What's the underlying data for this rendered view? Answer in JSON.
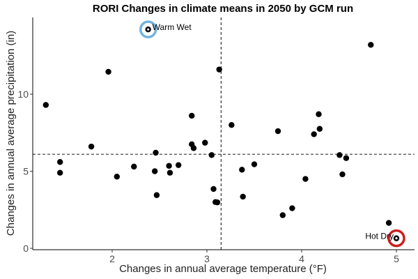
{
  "chart_data": {
    "type": "scatter",
    "title": "RORI Changes in climate means in 2050 by GCM run",
    "xlabel": "Changes in annual average temperature (°F)",
    "ylabel": "Changes in annual average precipitation (in)",
    "xlim": [
      1.2,
      5.2
    ],
    "ylim": [
      0,
      15
    ],
    "x_ticks": [
      2,
      3,
      4,
      5
    ],
    "y_ticks": [
      0,
      5,
      10
    ],
    "x_tick_labels": [
      "2",
      "3",
      "4",
      "5"
    ],
    "y_tick_labels": [
      "0",
      "5",
      "10"
    ],
    "grid": false,
    "reference_lines": {
      "x": 3.15,
      "y": 6.1
    },
    "points": [
      {
        "x": 1.3,
        "y": 9.3
      },
      {
        "x": 1.45,
        "y": 5.6
      },
      {
        "x": 1.45,
        "y": 4.9
      },
      {
        "x": 1.78,
        "y": 6.6
      },
      {
        "x": 1.96,
        "y": 11.45
      },
      {
        "x": 2.05,
        "y": 4.65
      },
      {
        "x": 2.23,
        "y": 5.3
      },
      {
        "x": 2.38,
        "y": 14.2
      },
      {
        "x": 2.45,
        "y": 5.0
      },
      {
        "x": 2.46,
        "y": 6.2
      },
      {
        "x": 2.47,
        "y": 3.45
      },
      {
        "x": 2.6,
        "y": 5.35
      },
      {
        "x": 2.61,
        "y": 4.9
      },
      {
        "x": 2.7,
        "y": 5.4
      },
      {
        "x": 2.84,
        "y": 8.6
      },
      {
        "x": 2.84,
        "y": 6.75
      },
      {
        "x": 2.86,
        "y": 6.5
      },
      {
        "x": 2.98,
        "y": 6.85
      },
      {
        "x": 3.05,
        "y": 6.05
      },
      {
        "x": 3.07,
        "y": 3.85
      },
      {
        "x": 3.09,
        "y": 3.0
      },
      {
        "x": 3.11,
        "y": 2.98
      },
      {
        "x": 3.13,
        "y": 11.6
      },
      {
        "x": 3.26,
        "y": 8.0
      },
      {
        "x": 3.37,
        "y": 5.1
      },
      {
        "x": 3.38,
        "y": 3.35
      },
      {
        "x": 3.5,
        "y": 5.45
      },
      {
        "x": 3.75,
        "y": 7.6
      },
      {
        "x": 3.8,
        "y": 2.15
      },
      {
        "x": 3.9,
        "y": 2.6
      },
      {
        "x": 4.04,
        "y": 4.5
      },
      {
        "x": 4.13,
        "y": 7.4
      },
      {
        "x": 4.18,
        "y": 8.7
      },
      {
        "x": 4.19,
        "y": 7.75
      },
      {
        "x": 4.4,
        "y": 6.05
      },
      {
        "x": 4.43,
        "y": 4.8
      },
      {
        "x": 4.47,
        "y": 5.85
      },
      {
        "x": 4.73,
        "y": 13.2
      },
      {
        "x": 4.92,
        "y": 1.65
      },
      {
        "x": 5.0,
        "y": 0.65
      }
    ],
    "highlights": [
      {
        "label": "Warm Wet",
        "x": 2.38,
        "y": 14.2,
        "color": "#74b3dd",
        "label_side": "right"
      },
      {
        "label": "Hot Dry",
        "x": 5.0,
        "y": 0.65,
        "color": "#cc1f1f",
        "label_side": "left"
      }
    ],
    "colors": {
      "point": "#000000",
      "axis": "#000000",
      "reference_line": "#333333"
    }
  }
}
